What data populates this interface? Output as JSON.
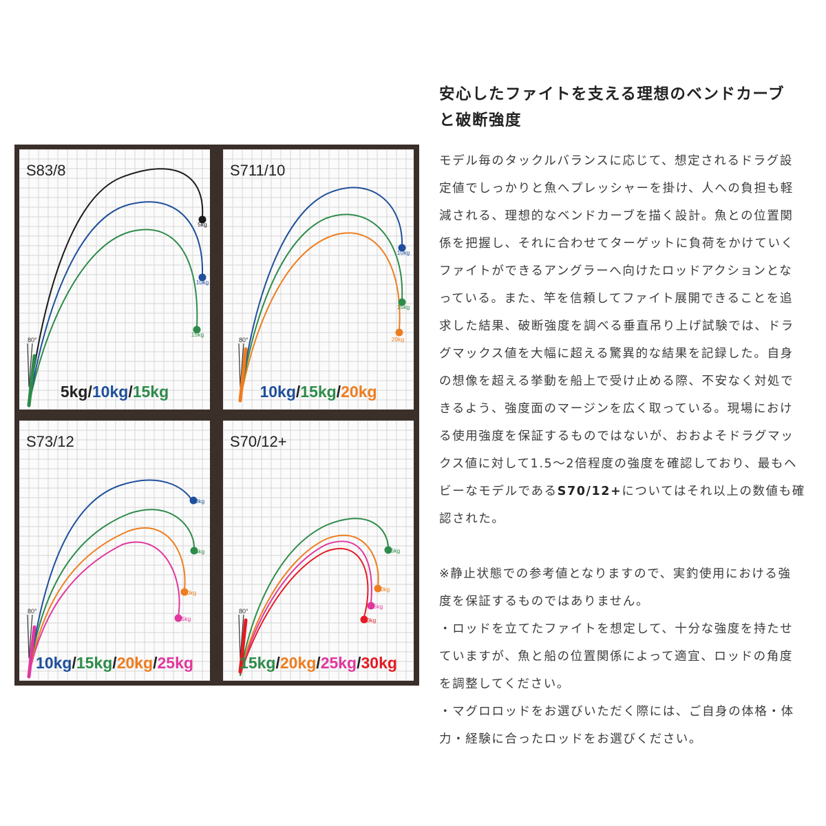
{
  "panels": [
    {
      "label": "S83/8",
      "angle_label": "80°",
      "curves": [
        {
          "name": "5kg",
          "color": "#1a1a1a"
        },
        {
          "name": "10kg",
          "color": "#1f4f9c"
        },
        {
          "name": "15kg",
          "color": "#2e8b4a"
        }
      ],
      "legend": [
        "5kg",
        "10kg",
        "15kg"
      ]
    },
    {
      "label": "S711/10",
      "angle_label": "80°",
      "curves": [
        {
          "name": "10kg",
          "color": "#1f4f9c"
        },
        {
          "name": "15kg",
          "color": "#2e8b4a"
        },
        {
          "name": "20kg",
          "color": "#ee7d1f"
        }
      ],
      "legend": [
        "10kg",
        "15kg",
        "20kg"
      ]
    },
    {
      "label": "S73/12",
      "angle_label": "80°",
      "curves": [
        {
          "name": "10kg",
          "color": "#1f4f9c"
        },
        {
          "name": "15kg",
          "color": "#2e8b4a"
        },
        {
          "name": "20kg",
          "color": "#ee7d1f"
        },
        {
          "name": "25kg",
          "color": "#e0379e"
        }
      ],
      "legend": [
        "10kg",
        "15kg",
        "20kg",
        "25kg"
      ]
    },
    {
      "label": "S70/12+",
      "angle_label": "80°",
      "curves": [
        {
          "name": "15kg",
          "color": "#2e8b4a"
        },
        {
          "name": "20kg",
          "color": "#ee7d1f"
        },
        {
          "name": "25kg",
          "color": "#e0379e"
        },
        {
          "name": "30kg",
          "color": "#e31b23"
        }
      ],
      "legend": [
        "15kg",
        "20kg",
        "25kg",
        "30kg"
      ]
    }
  ],
  "headline": {
    "line1": "安心したファイトを支える理想のベンドカーブ",
    "line2": "と破断強度"
  },
  "body": {
    "p1": [
      "モデル毎のタックルバランスに応じて、想定されるドラグ設",
      "定値でしっかりと魚へプレッシャーを掛け、人への負担も軽",
      "減される、理想的なベンドカーブを描く設計。魚との位置関",
      "係を把握し、それに合わせてターゲットに負荷をかけていく",
      "ファイトができるアングラーへ向けたロッドアクションとな",
      "っている。また、竿を信頼してファイト展開できることを追",
      "求した結果、破断強度を調べる垂直吊り上げ試験では、ドラ",
      "グマックス値を大幅に超える驚異的な結果を記録した。自身",
      "の想像を超える挙動を船上で受け止める際、不安なく対処で",
      "きるよう、強度面のマージンを広く取っている。現場におけ",
      "る使用強度を保証するものではないが、おおよそドラグマッ",
      "クス値に対して1.5〜2倍程度の強度を確認しており、最もヘ"
    ],
    "p1_line13_before": "ビーなモデルである",
    "p1_line13_bold": "S70/12+",
    "p1_line13_after": "についてはそれ以上の数値も確",
    "p1_line14": "認された。",
    "note": [
      "※静止状態での参考値となりますので、実釣使用における強",
      "度を保証するものではありません。",
      "・ロッドを立てたファイトを想定して、十分な強度を持たせ",
      "ていますが、魚と船の位置関係によって適宜、ロッドの角度",
      "を調整してください。",
      "・マグロロッドをお選びいただく際には、ご自身の体格・体",
      "力・経験に合ったロッドをお選びください。"
    ]
  }
}
